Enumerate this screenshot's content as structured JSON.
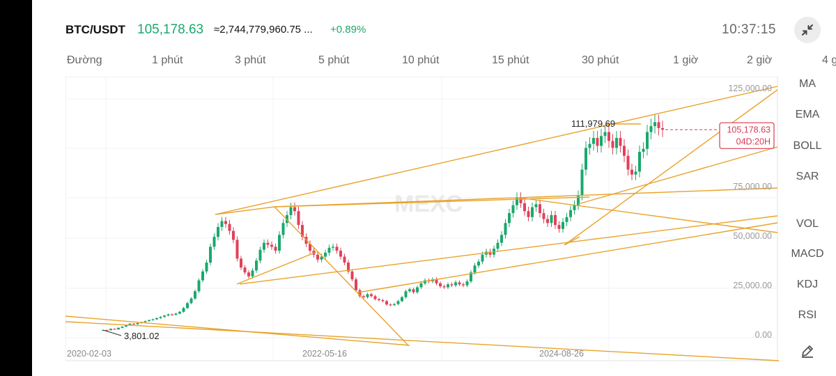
{
  "header": {
    "pair": "BTC/USDT",
    "price": "105,178.63",
    "volume": "≈2,744,779,960.75 ...",
    "change": "+0.89%",
    "time": "10:37:15"
  },
  "tabs": [
    "Đường",
    "1 phút",
    "3 phút",
    "5 phút",
    "10 phút",
    "15 phút",
    "30 phút",
    "1 giờ",
    "2 giờ",
    "4 g"
  ],
  "side_indicators": [
    "MA",
    "EMA",
    "BOLL",
    "SAR",
    "VOL",
    "MACD",
    "KDJ",
    "RSI"
  ],
  "watermark": "MEXC",
  "icons": [
    "collapse-arrows-icon",
    "pencil-icon"
  ],
  "colors": {
    "up": "#1aa86d",
    "down": "#e0425a",
    "trendline": "#e8a22a",
    "price_tag": "#d83a55"
  },
  "chart_data": {
    "type": "candlestick",
    "y_axis_ticks": [
      "125,000.00",
      "75,000.00",
      "50,000.00",
      "25,000.00",
      "0.00"
    ],
    "x_axis_ticks": [
      "2020-02-03",
      "2022-05-16",
      "2024-08-26"
    ],
    "ylim": [
      0,
      125000
    ],
    "last_price_tag": "105,178.63",
    "countdown": "04D:20H",
    "high_label": "111,979.69",
    "low_label": "3,801.02",
    "close_series": [
      3900,
      3801,
      4500,
      4200,
      5000,
      5600,
      6200,
      7100,
      6800,
      7400,
      7900,
      8400,
      8900,
      9300,
      9900,
      10500,
      11200,
      11800,
      11600,
      12200,
      13100,
      15000,
      17500,
      19800,
      23500,
      29000,
      33500,
      38000,
      46000,
      51000,
      56000,
      59000,
      57500,
      54000,
      49500,
      40000,
      35500,
      33000,
      31000,
      34000,
      39000,
      44500,
      48000,
      47000,
      46000,
      44000,
      52000,
      58000,
      62000,
      66000,
      64000,
      57000,
      51000,
      47500,
      44000,
      42000,
      39500,
      41000,
      43000,
      45500,
      46000,
      44000,
      41000,
      38000,
      33500,
      29500,
      24000,
      21000,
      20500,
      22000,
      21000,
      19500,
      19000,
      18500,
      16800,
      16500,
      17000,
      18500,
      20500,
      23500,
      24500,
      23000,
      25500,
      27500,
      29000,
      28500,
      29500,
      27500,
      26000,
      25500,
      27000,
      26500,
      28000,
      27000,
      26500,
      28500,
      33000,
      36500,
      38500,
      42000,
      43500,
      42000,
      45000,
      48000,
      52000,
      58000,
      63000,
      67000,
      71000,
      68000,
      64000,
      61000,
      66000,
      67500,
      63000,
      60000,
      58000,
      62000,
      57000,
      55000,
      58500,
      61000,
      64500,
      67000,
      72000,
      85000,
      96000,
      98000,
      101000,
      97000,
      102000,
      104000,
      99500,
      96000,
      101000,
      97000,
      92000,
      85000,
      82500,
      84000,
      94000,
      95500,
      104000,
      107000,
      109000,
      106000,
      105178.63
    ]
  }
}
